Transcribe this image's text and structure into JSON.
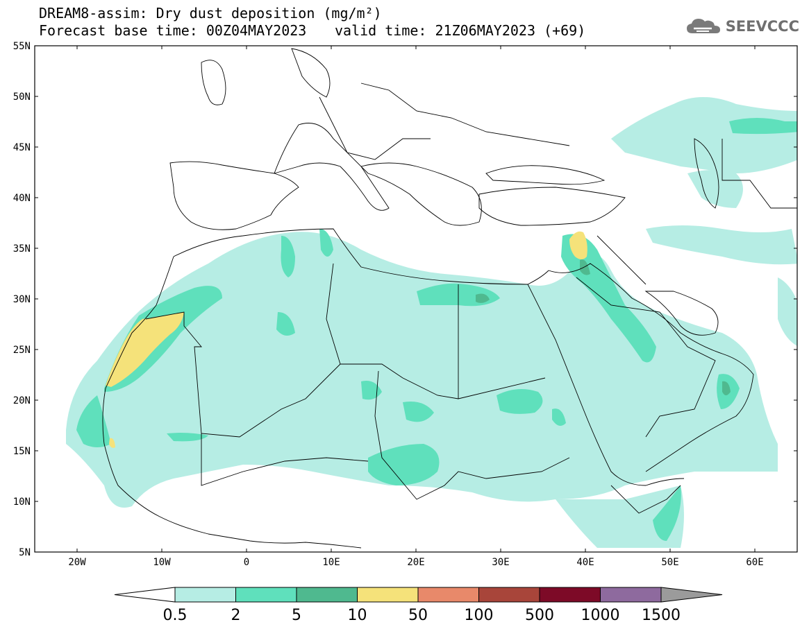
{
  "header": {
    "title": "DREAM8-assim: Dry dust deposition (mg/m²)",
    "base_time": "Forecast base time: 00Z04MAY2023",
    "valid_time": "valid time: 21Z06MAY2023 (+69)"
  },
  "brand": {
    "name": "SEEVCCC",
    "icon": "cloud-logo-icon",
    "color": "#6f6f6f"
  },
  "map": {
    "lon_range": [
      -25,
      65
    ],
    "lat_range": [
      5,
      55
    ],
    "lon_ticks": [
      {
        "value": -20,
        "label": "20W"
      },
      {
        "value": -10,
        "label": "10W"
      },
      {
        "value": 0,
        "label": "0"
      },
      {
        "value": 10,
        "label": "10E"
      },
      {
        "value": 20,
        "label": "20E"
      },
      {
        "value": 30,
        "label": "30E"
      },
      {
        "value": 40,
        "label": "40E"
      },
      {
        "value": 50,
        "label": "50E"
      },
      {
        "value": 60,
        "label": "60E"
      }
    ],
    "lat_ticks": [
      {
        "value": 5,
        "label": "5N"
      },
      {
        "value": 10,
        "label": "10N"
      },
      {
        "value": 15,
        "label": "15N"
      },
      {
        "value": 20,
        "label": "20N"
      },
      {
        "value": 25,
        "label": "25N"
      },
      {
        "value": 30,
        "label": "30N"
      },
      {
        "value": 35,
        "label": "35N"
      },
      {
        "value": 40,
        "label": "40N"
      },
      {
        "value": 45,
        "label": "45N"
      },
      {
        "value": 50,
        "label": "50N"
      },
      {
        "value": 55,
        "label": "55N"
      }
    ]
  },
  "legend": {
    "labels": [
      "0.5",
      "2",
      "5",
      "10",
      "50",
      "100",
      "500",
      "1000",
      "1500"
    ],
    "colors": [
      "#b6ede4",
      "#5fe0bc",
      "#4fb98f",
      "#f5e27a",
      "#e8896a",
      "#a8453a",
      "#7d0a27",
      "#8e6a9e"
    ],
    "under_color": "#ffffff",
    "over_color": "#9b9b9b"
  },
  "colors": {
    "level1": "#b6ede4",
    "level2": "#5fe0bc",
    "level3": "#4fb98f",
    "level4": "#f5e27a",
    "level5": "#e8896a",
    "coast": "#000000"
  }
}
